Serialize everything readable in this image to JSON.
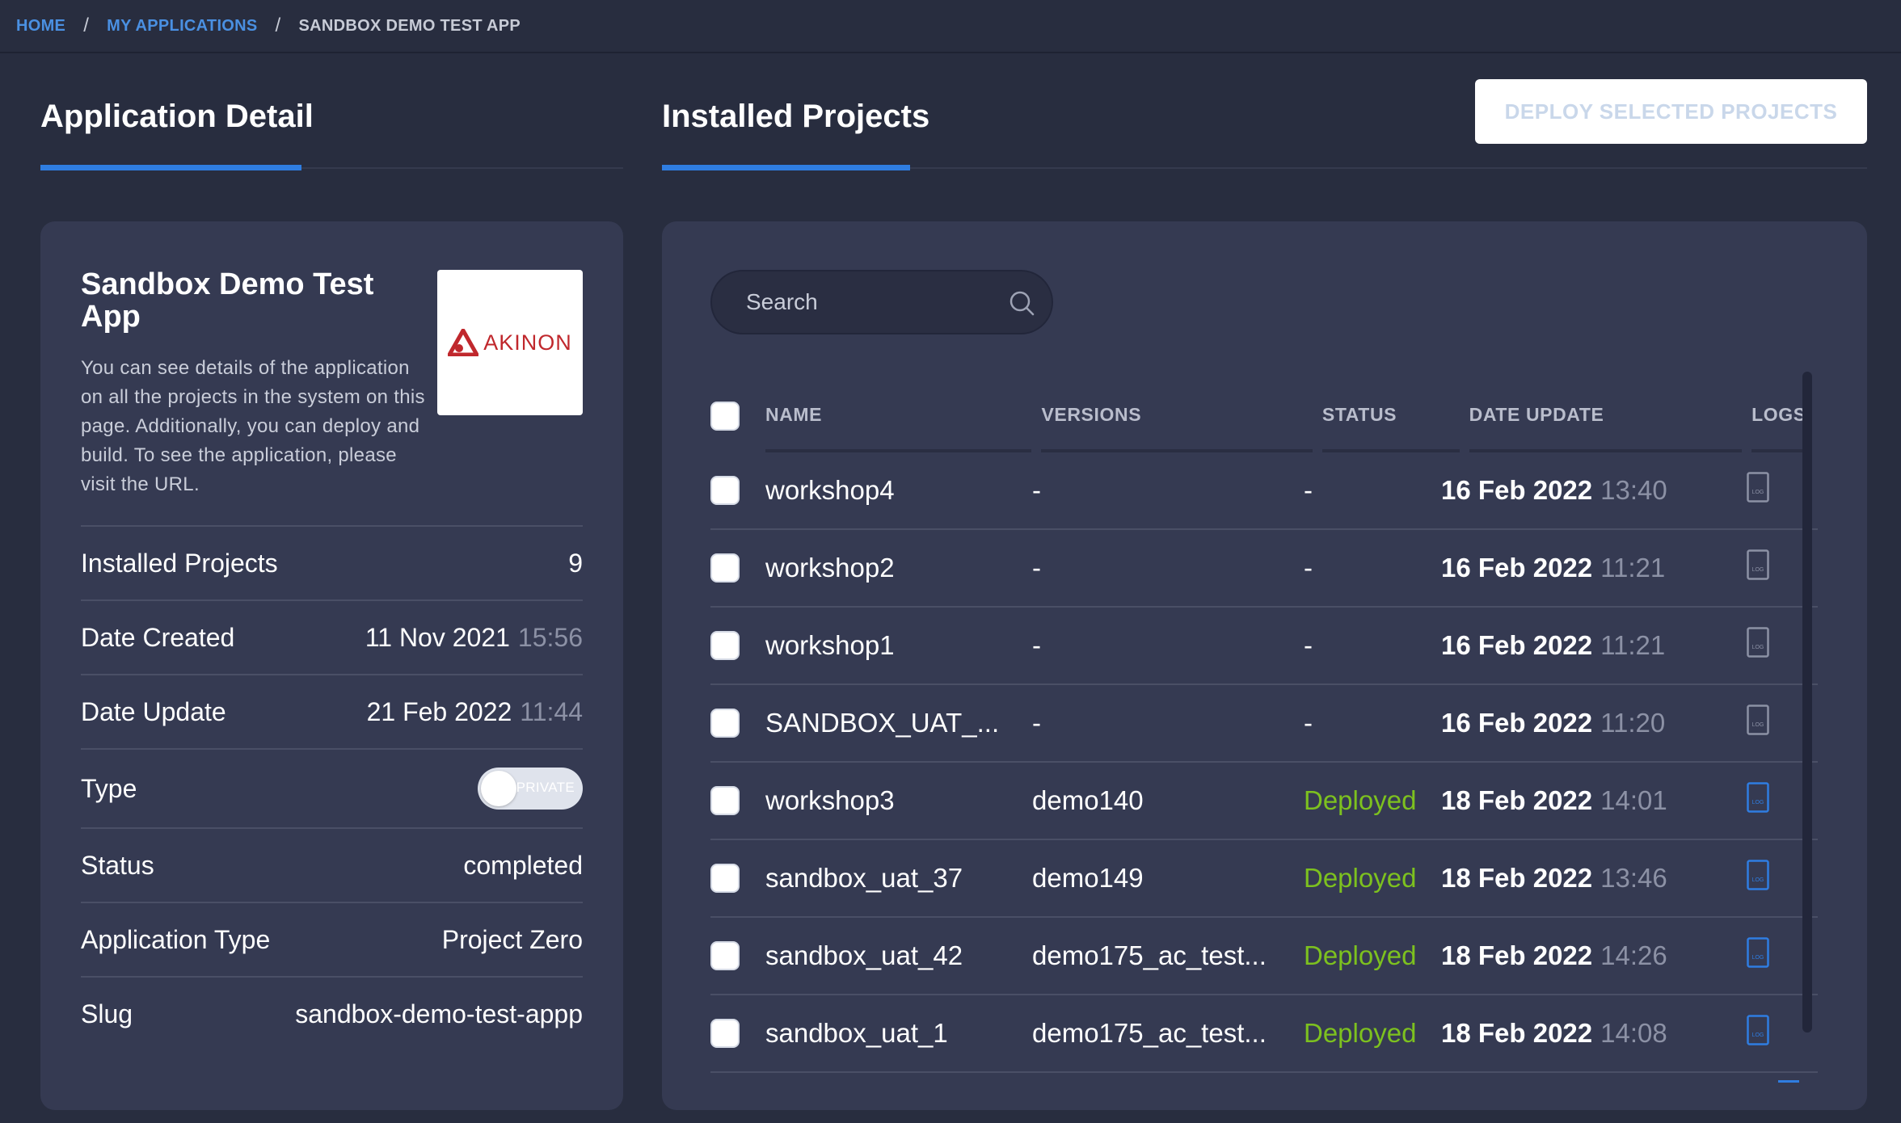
{
  "breadcrumb": {
    "home": "HOME",
    "my_apps": "MY APPLICATIONS",
    "current": "SANDBOX DEMO TEST APP",
    "separator": "/"
  },
  "sections": {
    "detail_title": "Application Detail",
    "projects_title": "Installed Projects",
    "deploy_button": "DEPLOY SELECTED PROJECTS"
  },
  "app": {
    "title": "Sandbox Demo Test App",
    "description": "You can see details of the application on all the projects in the system on this page. Additionally, you can deploy and build. To see the application, please visit the URL.",
    "logo_text": "AKINON",
    "info": {
      "installed_projects_label": "Installed Projects",
      "installed_projects_value": "9",
      "date_created_label": "Date Created",
      "date_created_date": "11 Nov 2021",
      "date_created_time": "15:56",
      "date_update_label": "Date Update",
      "date_update_date": "21 Feb 2022",
      "date_update_time": "11:44",
      "type_label": "Type",
      "type_toggle_text": "PRIVATE",
      "status_label": "Status",
      "status_value": "completed",
      "app_type_label": "Application Type",
      "app_type_value": "Project Zero",
      "slug_label": "Slug",
      "slug_value": "sandbox-demo-test-appp"
    }
  },
  "search": {
    "placeholder": "Search"
  },
  "table": {
    "headers": {
      "name": "NAME",
      "versions": "VERSIONS",
      "status": "STATUS",
      "date": "DATE UPDATE",
      "logs": "LOGS"
    },
    "rows": [
      {
        "name": "workshop4",
        "version": "-",
        "status": "-",
        "date": "16 Feb 2022",
        "time": "13:40",
        "log_active": false
      },
      {
        "name": "workshop2",
        "version": "-",
        "status": "-",
        "date": "16 Feb 2022",
        "time": "11:21",
        "log_active": false
      },
      {
        "name": "workshop1",
        "version": "-",
        "status": "-",
        "date": "16 Feb 2022",
        "time": "11:21",
        "log_active": false
      },
      {
        "name": "SANDBOX_UAT_...",
        "version": "-",
        "status": "-",
        "date": "16 Feb 2022",
        "time": "11:20",
        "log_active": false
      },
      {
        "name": "workshop3",
        "version": "demo140",
        "status": "Deployed",
        "date": "18 Feb 2022",
        "time": "14:01",
        "log_active": true
      },
      {
        "name": "sandbox_uat_37",
        "version": "demo149",
        "status": "Deployed",
        "date": "18 Feb 2022",
        "time": "13:46",
        "log_active": true
      },
      {
        "name": "sandbox_uat_42",
        "version": "demo175_ac_test...",
        "status": "Deployed",
        "date": "18 Feb 2022",
        "time": "14:26",
        "log_active": true
      },
      {
        "name": "sandbox_uat_1",
        "version": "demo175_ac_test...",
        "status": "Deployed",
        "date": "18 Feb 2022",
        "time": "14:08",
        "log_active": true
      }
    ],
    "log_icon_text": "LOG"
  },
  "colors": {
    "accent": "#2f7de1",
    "deployed": "#7dc11f",
    "background": "#282d3f",
    "card": "#353a52",
    "log_inactive": "#8c91a5"
  }
}
